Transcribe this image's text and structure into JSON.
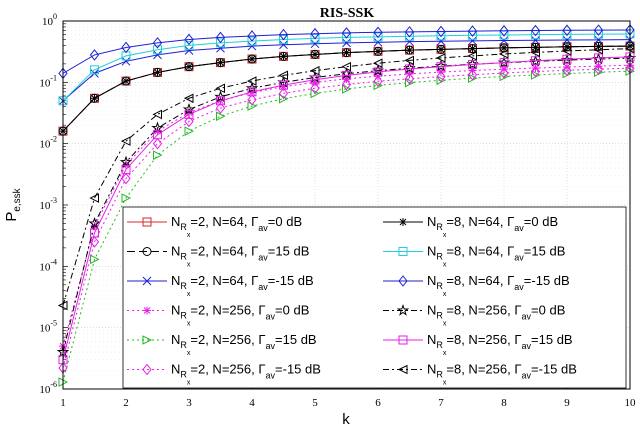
{
  "chart_data": {
    "type": "line",
    "title": "RIS-SSK",
    "xlabel": "k",
    "ylabel": {
      "main": "P",
      "sub": "e,ssk"
    },
    "xlim": [
      1,
      10
    ],
    "ylim": [
      1e-06,
      1
    ],
    "yscale": "log",
    "grid": true,
    "legend_position": "lower-right",
    "x_ticks": [
      "1",
      "2",
      "3",
      "4",
      "5",
      "6",
      "7",
      "8",
      "9",
      "10"
    ],
    "y_ticks": [
      {
        "base": "10",
        "exp": "-6"
      },
      {
        "base": "10",
        "exp": "-5"
      },
      {
        "base": "10",
        "exp": "-4"
      },
      {
        "base": "10",
        "exp": "-3"
      },
      {
        "base": "10",
        "exp": "-2"
      },
      {
        "base": "10",
        "exp": "-1"
      },
      {
        "base": "10",
        "exp": "0"
      }
    ],
    "x": [
      1,
      1.5,
      2,
      2.5,
      3,
      3.5,
      4,
      4.5,
      5,
      5.5,
      6,
      6.5,
      7,
      7.5,
      8,
      8.5,
      9,
      9.5,
      10
    ],
    "series": [
      {
        "nrx": "2",
        "n": "N=64",
        "gamma": "=0 dB",
        "color": "#d62728",
        "dash": "",
        "marker": "square",
        "values": [
          0.016,
          0.055,
          0.105,
          0.145,
          0.18,
          0.21,
          0.24,
          0.265,
          0.285,
          0.305,
          0.32,
          0.335,
          0.345,
          0.355,
          0.365,
          0.372,
          0.38,
          0.385,
          0.39
        ]
      },
      {
        "nrx": "2",
        "n": "N=64",
        "gamma": "=15 dB",
        "color": "#000000",
        "dash": "8,4",
        "marker": "circle",
        "values": [
          0.016,
          0.055,
          0.105,
          0.145,
          0.18,
          0.21,
          0.24,
          0.265,
          0.285,
          0.305,
          0.32,
          0.335,
          0.345,
          0.355,
          0.365,
          0.372,
          0.38,
          0.385,
          0.39
        ]
      },
      {
        "nrx": "2",
        "n": "N=64",
        "gamma": "=-15 dB",
        "color": "#1f1fd6",
        "dash": "",
        "marker": "x",
        "values": [
          0.05,
          0.14,
          0.22,
          0.28,
          0.33,
          0.36,
          0.39,
          0.41,
          0.425,
          0.44,
          0.45,
          0.46,
          0.468,
          0.475,
          0.48,
          0.485,
          0.49,
          0.493,
          0.496
        ]
      },
      {
        "nrx": "2",
        "n": "N=256",
        "gamma": "=0 dB",
        "color": "#e81ee8",
        "dash": "2,3",
        "marker": "star",
        "values": [
          5e-06,
          0.00045,
          0.0045,
          0.016,
          0.032,
          0.05,
          0.068,
          0.085,
          0.1,
          0.114,
          0.126,
          0.137,
          0.147,
          0.156,
          0.164,
          0.171,
          0.178,
          0.184,
          0.19
        ]
      },
      {
        "nrx": "2",
        "n": "N=256",
        "gamma": "=15 dB",
        "color": "#22bb22",
        "dash": "2,3",
        "marker": "triangle-right",
        "values": [
          1.3e-06,
          0.00013,
          0.0013,
          0.0065,
          0.016,
          0.028,
          0.041,
          0.054,
          0.066,
          0.078,
          0.089,
          0.099,
          0.108,
          0.117,
          0.125,
          0.132,
          0.139,
          0.146,
          0.152
        ]
      },
      {
        "nrx": "2",
        "n": "N=256",
        "gamma": "=-15 dB",
        "color": "#e81ee8",
        "dash": "2,3",
        "marker": "diamond",
        "values": [
          2.2e-06,
          0.00025,
          0.0027,
          0.01,
          0.023,
          0.038,
          0.052,
          0.066,
          0.08,
          0.092,
          0.104,
          0.114,
          0.124,
          0.133,
          0.142,
          0.15,
          0.157,
          0.164,
          0.17
        ]
      },
      {
        "nrx": "8",
        "n": "N=64",
        "gamma": "=0 dB",
        "color": "#000000",
        "dash": "",
        "marker": "asterisk",
        "values": [
          0.016,
          0.055,
          0.105,
          0.145,
          0.18,
          0.21,
          0.24,
          0.265,
          0.285,
          0.305,
          0.32,
          0.335,
          0.345,
          0.355,
          0.365,
          0.372,
          0.38,
          0.385,
          0.39
        ]
      },
      {
        "nrx": "8",
        "n": "N=64",
        "gamma": "=15 dB",
        "color": "#20d0d8",
        "dash": "",
        "marker": "square",
        "values": [
          0.05,
          0.16,
          0.27,
          0.34,
          0.4,
          0.44,
          0.47,
          0.5,
          0.52,
          0.54,
          0.55,
          0.565,
          0.575,
          0.585,
          0.59,
          0.6,
          0.605,
          0.61,
          0.615
        ]
      },
      {
        "nrx": "8",
        "n": "N=64",
        "gamma": "=-15 dB",
        "color": "#1f1fd6",
        "dash": "",
        "marker": "diamond",
        "values": [
          0.14,
          0.28,
          0.37,
          0.44,
          0.5,
          0.54,
          0.57,
          0.6,
          0.62,
          0.64,
          0.655,
          0.665,
          0.675,
          0.685,
          0.693,
          0.7,
          0.705,
          0.71,
          0.715
        ]
      },
      {
        "nrx": "8",
        "n": "N=256",
        "gamma": "=0 dB",
        "color": "#000000",
        "dash": "6,3,2,3",
        "marker": "pentagram",
        "values": [
          4e-06,
          0.0005,
          0.005,
          0.018,
          0.036,
          0.058,
          0.08,
          0.1,
          0.12,
          0.138,
          0.155,
          0.17,
          0.184,
          0.197,
          0.209,
          0.22,
          0.23,
          0.24,
          0.248
        ]
      },
      {
        "nrx": "8",
        "n": "N=256",
        "gamma": "=15 dB",
        "color": "#e81ee8",
        "dash": "",
        "marker": "square",
        "values": [
          3e-06,
          0.00035,
          0.0038,
          0.014,
          0.03,
          0.05,
          0.07,
          0.09,
          0.11,
          0.13,
          0.148,
          0.165,
          0.18,
          0.195,
          0.21,
          0.225,
          0.238,
          0.25,
          0.26
        ]
      },
      {
        "nrx": "8",
        "n": "N=256",
        "gamma": "=-15 dB",
        "color": "#000000",
        "dash": "6,3,2,3",
        "marker": "triangle-left",
        "values": [
          2.3e-05,
          0.0013,
          0.011,
          0.03,
          0.055,
          0.08,
          0.105,
          0.13,
          0.155,
          0.18,
          0.205,
          0.228,
          0.25,
          0.27,
          0.29,
          0.308,
          0.325,
          0.34,
          0.355
        ]
      }
    ]
  }
}
